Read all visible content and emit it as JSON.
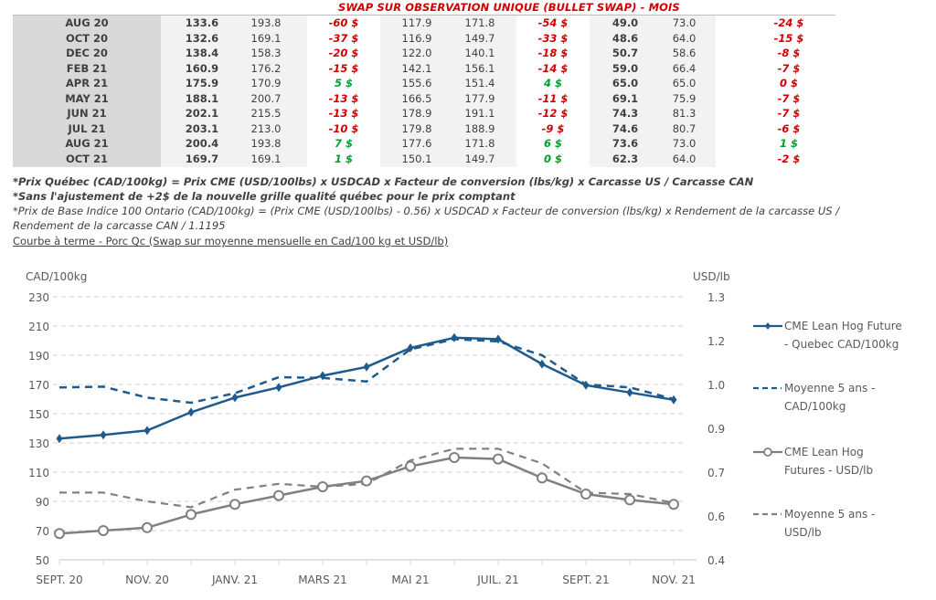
{
  "table": {
    "title": "SWAP SUR OBSERVATION UNIQUE (BULLET SWAP) - MOIS",
    "rows": [
      {
        "month": "AUG 20",
        "qc": "133.6",
        "qc_avg": "193.8",
        "qc_diff": "-60 $",
        "ont": "117.9",
        "ont_avg": "171.8",
        "ont_diff": "-54 $",
        "usd": "49.0",
        "usd_avg": "73.0",
        "usd_diff": "-24 $"
      },
      {
        "month": "OCT 20",
        "qc": "132.6",
        "qc_avg": "169.1",
        "qc_diff": "-37 $",
        "ont": "116.9",
        "ont_avg": "149.7",
        "ont_diff": "-33 $",
        "usd": "48.6",
        "usd_avg": "64.0",
        "usd_diff": "-15 $"
      },
      {
        "month": "DEC 20",
        "qc": "138.4",
        "qc_avg": "158.3",
        "qc_diff": "-20 $",
        "ont": "122.0",
        "ont_avg": "140.1",
        "ont_diff": "-18 $",
        "usd": "50.7",
        "usd_avg": "58.6",
        "usd_diff": "-8 $"
      },
      {
        "month": "FEB 21",
        "qc": "160.9",
        "qc_avg": "176.2",
        "qc_diff": "-15 $",
        "ont": "142.1",
        "ont_avg": "156.1",
        "ont_diff": "-14 $",
        "usd": "59.0",
        "usd_avg": "66.4",
        "usd_diff": "-7 $"
      },
      {
        "month": "APR 21",
        "qc": "175.9",
        "qc_avg": "170.9",
        "qc_diff": "5 $",
        "ont": "155.6",
        "ont_avg": "151.4",
        "ont_diff": "4 $",
        "usd": "65.0",
        "usd_avg": "65.0",
        "usd_diff": "0 $"
      },
      {
        "month": "MAY 21",
        "qc": "188.1",
        "qc_avg": "200.7",
        "qc_diff": "-13 $",
        "ont": "166.5",
        "ont_avg": "177.9",
        "ont_diff": "-11 $",
        "usd": "69.1",
        "usd_avg": "75.9",
        "usd_diff": "-7 $"
      },
      {
        "month": "JUN 21",
        "qc": "202.1",
        "qc_avg": "215.5",
        "qc_diff": "-13 $",
        "ont": "178.9",
        "ont_avg": "191.1",
        "ont_diff": "-12 $",
        "usd": "74.3",
        "usd_avg": "81.3",
        "usd_diff": "-7 $"
      },
      {
        "month": "JUL 21",
        "qc": "203.1",
        "qc_avg": "213.0",
        "qc_diff": "-10 $",
        "ont": "179.8",
        "ont_avg": "188.9",
        "ont_diff": "-9 $",
        "usd": "74.6",
        "usd_avg": "80.7",
        "usd_diff": "-6 $"
      },
      {
        "month": "AUG 21",
        "qc": "200.4",
        "qc_avg": "193.8",
        "qc_diff": "7 $",
        "ont": "177.6",
        "ont_avg": "171.8",
        "ont_diff": "6 $",
        "usd": "73.6",
        "usd_avg": "73.0",
        "usd_diff": "1 $"
      },
      {
        "month": "OCT 21",
        "qc": "169.7",
        "qc_avg": "169.1",
        "qc_diff": "1 $",
        "ont": "150.1",
        "ont_avg": "149.7",
        "ont_diff": "0 $",
        "usd": "62.3",
        "usd_avg": "64.0",
        "usd_diff": "-2 $"
      }
    ],
    "diff_signs": {
      "qc": [
        "neg",
        "neg",
        "neg",
        "neg",
        "pos",
        "neg",
        "neg",
        "neg",
        "pos",
        "pos"
      ],
      "ont": [
        "neg",
        "neg",
        "neg",
        "neg",
        "pos",
        "neg",
        "neg",
        "neg",
        "pos",
        "pos"
      ],
      "usd": [
        "neg",
        "neg",
        "neg",
        "neg",
        "neg",
        "neg",
        "neg",
        "neg",
        "pos",
        "neg"
      ]
    }
  },
  "notes": {
    "line1": "*Prix Québec (CAD/100kg) = Prix CME (USD/100lbs) x USDCAD x Facteur de conversion (lbs/kg) x Carcasse US / Carcasse CAN",
    "line2": "*Sans l'ajustement de +2$ de la nouvelle grille qualité québec pour le prix comptant",
    "line3": "*Prix de Base Indice 100 Ontario (CAD/100kg) = (Prix CME (USD/100lbs) - 0.56) x USDCAD x Facteur de conversion (lbs/kg) x Rendement de la carcasse US /",
    "line4": "Rendement de la carcasse CAN / 1.1195",
    "section_title": "Courbe à terme - Porc Qc (Swap sur moyenne mensuelle en Cad/100 kg et USD/lb)"
  },
  "colors": {
    "negative": "#d00000",
    "positive": "#00a030",
    "cad_series": "#1f5a8c",
    "usd_series": "#808080",
    "grid": "#d9d9d9"
  },
  "chart_data": {
    "type": "line",
    "title": "Courbe à terme - Porc Qc (Swap sur moyenne mensuelle en Cad/100 kg et USD/lb)",
    "x": [
      "SEPT. 20",
      "OCT. 20",
      "NOV. 20",
      "DÉC. 20",
      "JANV. 21",
      "FÉVR. 21",
      "MARS 21",
      "AVR. 21",
      "MAI 21",
      "JUIN 21",
      "JUIL. 21",
      "AOÛT 21",
      "SEPT. 21",
      "OCT. 21",
      "NOV. 21"
    ],
    "x_tick_labels": [
      "SEPT. 20",
      "",
      "NOV. 20",
      "",
      "JANV. 21",
      "",
      "MARS 21",
      "",
      "MAI 21",
      "",
      "JUIL. 21",
      "",
      "SEPT. 21",
      "",
      "NOV. 21"
    ],
    "ylabel": "CAD/100kg",
    "ylim": [
      50,
      230
    ],
    "yticks": [
      50,
      70,
      90,
      110,
      130,
      150,
      170,
      190,
      210,
      230
    ],
    "y2label": "USD/lb",
    "y2lim": [
      0.4,
      1.3
    ],
    "y2tick_labels": [
      "0.4",
      "0.6",
      "0.7",
      "0.9",
      "1.0",
      "1.2",
      "1.3"
    ],
    "grid": true,
    "legend_position": "right",
    "series": [
      {
        "name": "CME Lean Hog Future - Quebec CAD/100kg",
        "axis": "left",
        "style": "solid-diamond",
        "values": [
          133,
          135.5,
          138.5,
          151,
          161,
          168,
          176,
          182,
          195,
          202,
          201,
          184,
          169.5,
          164.5,
          159.5
        ]
      },
      {
        "name": "Moyenne 5 ans - CAD/100kg",
        "axis": "left",
        "style": "dashed",
        "values": [
          168,
          168.5,
          161,
          157.5,
          164,
          175,
          174.5,
          172,
          194,
          201,
          199.5,
          190,
          170,
          168,
          160
        ]
      },
      {
        "name": "CME Lean Hog Futures - USD/lb",
        "axis": "right",
        "style": "solid-circle",
        "values": [
          0.49,
          0.5,
          0.51,
          0.555,
          0.59,
          0.62,
          0.65,
          0.67,
          0.72,
          0.75,
          0.745,
          0.68,
          0.625,
          0.605,
          0.59
        ]
      },
      {
        "name": "Moyenne 5 ans - USD/lb",
        "axis": "right",
        "style": "dashed",
        "values": [
          0.63,
          0.63,
          0.6,
          0.58,
          0.64,
          0.66,
          0.65,
          0.66,
          0.74,
          0.78,
          0.78,
          0.73,
          0.63,
          0.625,
          0.595
        ]
      }
    ],
    "legend": [
      {
        "label_line1": "CME Lean Hog Future",
        "label_line2": "- Quebec CAD/100kg"
      },
      {
        "label_line1": "Moyenne 5 ans -",
        "label_line2": "CAD/100kg"
      },
      {
        "label_line1": "CME Lean Hog",
        "label_line2": "Futures - USD/lb"
      },
      {
        "label_line1": "Moyenne 5 ans -",
        "label_line2": "USD/lb"
      }
    ]
  }
}
